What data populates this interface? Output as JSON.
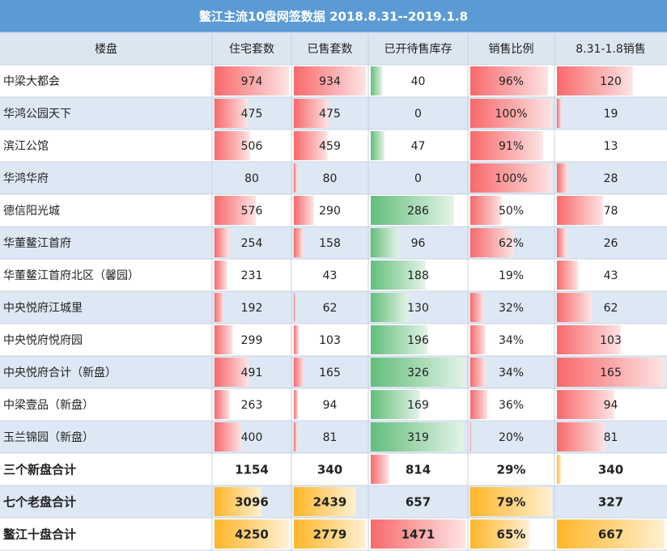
{
  "title": "鳌江主流10盘网签数据 2018.8.31--2019.1.8",
  "table": {
    "header": [
      "楼盘",
      "住宅套数",
      "已售套数",
      "已开待售库存",
      "销售比例",
      "8.31-1.8销售"
    ],
    "rows": [
      [
        "中梁大都会",
        974,
        934,
        40,
        "96%",
        120
      ],
      [
        "华鸿公园天下",
        475,
        475,
        0,
        "100%",
        19
      ],
      [
        "滨江公馆",
        506,
        459,
        47,
        "91%",
        13
      ],
      [
        "华鸿华府",
        80,
        80,
        0,
        "100%",
        28
      ],
      [
        "德信阳光城",
        576,
        290,
        286,
        "50%",
        78
      ],
      [
        "华董鳌江首府",
        254,
        158,
        96,
        "62%",
        26
      ],
      [
        "华董鳌江首府北区（馨园）",
        231,
        43,
        188,
        "19%",
        43
      ],
      [
        "中央悦府江城里",
        192,
        62,
        130,
        "32%",
        62
      ],
      [
        "中央悦府悦府园",
        299,
        103,
        196,
        "34%",
        103
      ],
      [
        "中央悦府合计（新盘）",
        491,
        165,
        326,
        "34%",
        165
      ],
      [
        "中梁壹品（新盘）",
        263,
        94,
        169,
        "36%",
        94
      ],
      [
        "玉兰锦园（新盘）",
        400,
        81,
        319,
        "20%",
        81
      ],
      [
        "三个新盘合计",
        1154,
        340,
        814,
        "29%",
        340
      ],
      [
        "七个老盘合计",
        3096,
        2439,
        657,
        "79%",
        327
      ],
      [
        "鳌江十盘合计",
        4250,
        2779,
        1471,
        "65%",
        667
      ]
    ]
  }
}
